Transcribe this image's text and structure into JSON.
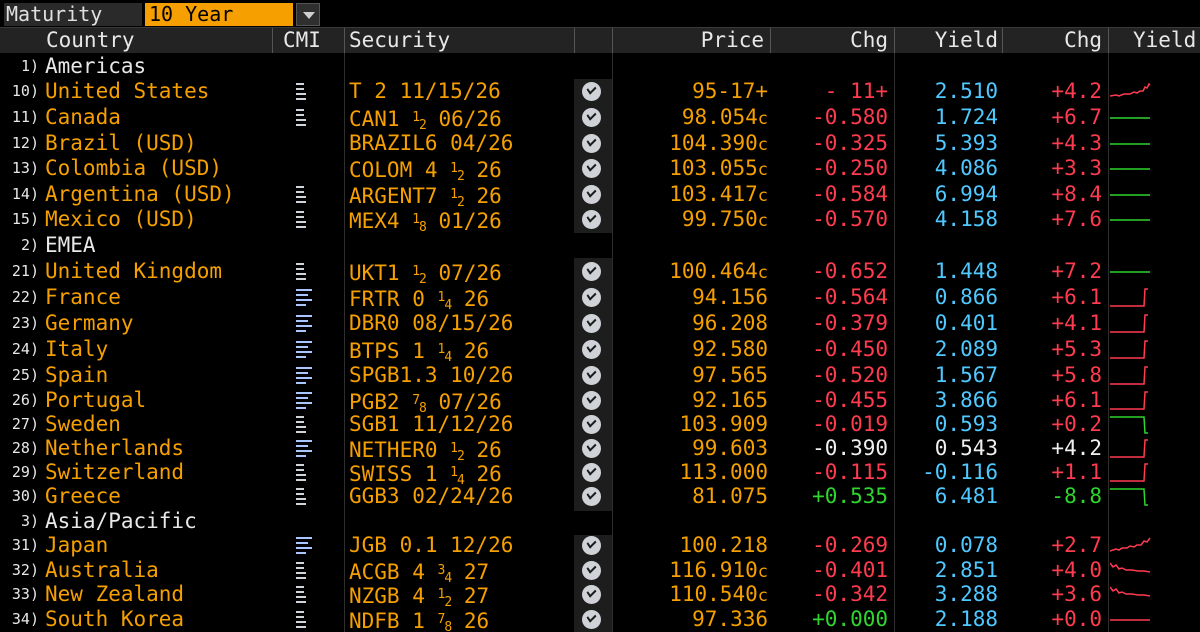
{
  "filter": {
    "label": "Maturity",
    "value": "10 Year"
  },
  "columns": {
    "country": "Country",
    "cmi": "CMI",
    "security": "Security",
    "price": "Price",
    "chg1": "Chg",
    "yield": "Yield",
    "chg2": "Chg",
    "yield_chart": "Yield"
  },
  "colors": {
    "orange": "#f5a000",
    "red": "#ff3b4f",
    "green": "#2ed62e",
    "cyan": "#4fc9ff",
    "white": "#f0f0f0"
  },
  "rows": [
    {
      "type": "region",
      "num": "1)",
      "name": "Americas"
    },
    {
      "type": "bond",
      "num": "10)",
      "country": "United States",
      "cmi": "white",
      "sec": [
        [
          "T 2 11/15/26",
          ""
        ]
      ],
      "price": "95-17+",
      "pc": "",
      "chg1": "- 11+",
      "chg1c": "red",
      "yield": "2.510",
      "yc": "cyan",
      "chg2": "+4.2",
      "chg2c": "red",
      "spark": "us"
    },
    {
      "type": "bond",
      "num": "11)",
      "country": "Canada",
      "cmi": "white",
      "sec": [
        [
          "CAN1 ",
          ""
        ],
        [
          "1",
          "sup"
        ],
        [
          "2",
          "sub"
        ],
        [
          " 06/26",
          ""
        ]
      ],
      "price": "98.054",
      "pc": "c",
      "chg1": "-0.580",
      "chg1c": "red",
      "yield": "1.724",
      "yc": "cyan",
      "chg2": "+6.7",
      "chg2c": "red",
      "spark": "flat"
    },
    {
      "type": "bond",
      "num": "12)",
      "country": "Brazil (USD)",
      "cmi": "",
      "sec": [
        [
          "BRAZIL6 04/26",
          ""
        ]
      ],
      "price": "104.390",
      "pc": "c",
      "chg1": "-0.325",
      "chg1c": "red",
      "yield": "5.393",
      "yc": "cyan",
      "chg2": "+4.3",
      "chg2c": "red",
      "spark": "flat"
    },
    {
      "type": "bond",
      "num": "13)",
      "country": "Colombia (USD)",
      "cmi": "",
      "sec": [
        [
          "COLOM 4 ",
          ""
        ],
        [
          "1",
          "sup"
        ],
        [
          "2",
          "sub"
        ],
        [
          " 26",
          ""
        ]
      ],
      "price": "103.055",
      "pc": "c",
      "chg1": "-0.250",
      "chg1c": "red",
      "yield": "4.086",
      "yc": "cyan",
      "chg2": "+3.3",
      "chg2c": "red",
      "spark": "flat"
    },
    {
      "type": "bond",
      "num": "14)",
      "country": "Argentina (USD)",
      "cmi": "white",
      "sec": [
        [
          "ARGENT7 ",
          ""
        ],
        [
          "1",
          "sup"
        ],
        [
          "2",
          "sub"
        ],
        [
          " 26",
          ""
        ]
      ],
      "price": "103.417",
      "pc": "c",
      "chg1": "-0.584",
      "chg1c": "red",
      "yield": "6.994",
      "yc": "cyan",
      "chg2": "+8.4",
      "chg2c": "red",
      "spark": "flat"
    },
    {
      "type": "bond",
      "num": "15)",
      "country": "Mexico (USD)",
      "cmi": "white",
      "sec": [
        [
          "MEX4 ",
          ""
        ],
        [
          "1",
          "sup"
        ],
        [
          "8",
          "sub"
        ],
        [
          " 01/26",
          ""
        ]
      ],
      "price": "99.750",
      "pc": "c",
      "chg1": "-0.570",
      "chg1c": "red",
      "yield": "4.158",
      "yc": "cyan",
      "chg2": "+7.6",
      "chg2c": "red",
      "spark": "flat"
    },
    {
      "type": "region",
      "num": "2)",
      "name": "EMEA"
    },
    {
      "type": "bond",
      "num": "21)",
      "country": "United Kingdom",
      "cmi": "white",
      "sec": [
        [
          "UKT1 ",
          ""
        ],
        [
          "1",
          "sup"
        ],
        [
          "2",
          "sub"
        ],
        [
          " 07/26",
          ""
        ]
      ],
      "price": "100.464",
      "pc": "c",
      "chg1": "-0.652",
      "chg1c": "red",
      "yield": "1.448",
      "yc": "cyan",
      "chg2": "+7.2",
      "chg2c": "red",
      "spark": "flat"
    },
    {
      "type": "bond",
      "num": "22)",
      "country": "France",
      "cmi": "blue",
      "sec": [
        [
          "FRTR 0 ",
          ""
        ],
        [
          "1",
          "sup"
        ],
        [
          "4",
          "sub"
        ],
        [
          " 26",
          ""
        ]
      ],
      "price": "94.156",
      "pc": "",
      "chg1": "-0.564",
      "chg1c": "red",
      "yield": "0.866",
      "yc": "cyan",
      "chg2": "+6.1",
      "chg2c": "red",
      "spark": "stepred"
    },
    {
      "type": "bond",
      "num": "23)",
      "country": "Germany",
      "cmi": "blue",
      "sec": [
        [
          "DBR0 08/15/26",
          ""
        ]
      ],
      "price": "96.208",
      "pc": "",
      "chg1": "-0.379",
      "chg1c": "red",
      "yield": "0.401",
      "yc": "cyan",
      "chg2": "+4.1",
      "chg2c": "red",
      "spark": "stepred"
    },
    {
      "type": "bond",
      "num": "24)",
      "country": "Italy",
      "cmi": "blue",
      "sec": [
        [
          "BTPS 1 ",
          ""
        ],
        [
          "1",
          "sup"
        ],
        [
          "4",
          "sub"
        ],
        [
          " 26",
          ""
        ]
      ],
      "price": "92.580",
      "pc": "",
      "chg1": "-0.450",
      "chg1c": "red",
      "yield": "2.089",
      "yc": "cyan",
      "chg2": "+5.3",
      "chg2c": "red",
      "spark": "stepred"
    },
    {
      "type": "bond",
      "num": "25)",
      "country": "Spain",
      "cmi": "blue",
      "sec": [
        [
          "SPGB1.3 10/26",
          ""
        ]
      ],
      "price": "97.565",
      "pc": "",
      "chg1": "-0.520",
      "chg1c": "red",
      "yield": "1.567",
      "yc": "cyan",
      "chg2": "+5.8",
      "chg2c": "red",
      "spark": "stepred"
    },
    {
      "type": "bond",
      "num": "26)",
      "country": "Portugal",
      "cmi": "blue",
      "sec": [
        [
          "PGB2 ",
          ""
        ],
        [
          "7",
          "sup"
        ],
        [
          "8",
          "sub"
        ],
        [
          " 07/26",
          ""
        ]
      ],
      "price": "92.165",
      "pc": "",
      "chg1": "-0.455",
      "chg1c": "red",
      "yield": "3.866",
      "yc": "cyan",
      "chg2": "+6.1",
      "chg2c": "red",
      "spark": "stepred"
    },
    {
      "type": "bond",
      "num": "27)",
      "country": "Sweden",
      "cmi": "white",
      "sec": [
        [
          "SGB1 11/12/26",
          ""
        ]
      ],
      "price": "103.909",
      "pc": "",
      "chg1": "-0.019",
      "chg1c": "red",
      "yield": "0.593",
      "yc": "cyan",
      "chg2": "+0.2",
      "chg2c": "red",
      "spark": "stepgreen"
    },
    {
      "type": "bond",
      "num": "28)",
      "country": "Netherlands",
      "cmi": "blue",
      "sec": [
        [
          "NETHER0 ",
          ""
        ],
        [
          "1",
          "sup"
        ],
        [
          "2",
          "sub"
        ],
        [
          " 26",
          ""
        ]
      ],
      "price": "99.603",
      "pc": "",
      "chg1": "-0.390",
      "chg1c": "white",
      "yield": "0.543",
      "yc": "white",
      "chg2": "+4.2",
      "chg2c": "white",
      "spark": "stepred"
    },
    {
      "type": "bond",
      "num": "29)",
      "country": "Switzerland",
      "cmi": "white",
      "sec": [
        [
          "SWISS 1 ",
          ""
        ],
        [
          "1",
          "sup"
        ],
        [
          "4",
          "sub"
        ],
        [
          " 26",
          ""
        ]
      ],
      "price": "113.000",
      "pc": "",
      "chg1": "-0.115",
      "chg1c": "red",
      "yield": "-0.116",
      "yc": "cyan",
      "chg2": "+1.1",
      "chg2c": "red",
      "spark": "stepred"
    },
    {
      "type": "bond",
      "num": "30)",
      "country": "Greece",
      "cmi": "white",
      "sec": [
        [
          "GGB3 02/24/26",
          ""
        ]
      ],
      "price": "81.075",
      "pc": "",
      "chg1": "+0.535",
      "chg1c": "green",
      "yield": "6.481",
      "yc": "cyan",
      "chg2": "-8.8",
      "chg2c": "green",
      "spark": "stepgreen"
    },
    {
      "type": "region",
      "num": "3)",
      "name": "Asia/Pacific"
    },
    {
      "type": "bond",
      "num": "31)",
      "country": "Japan",
      "cmi": "blue",
      "sec": [
        [
          "JGB 0.1 12/26",
          ""
        ]
      ],
      "price": "100.218",
      "pc": "",
      "chg1": "-0.269",
      "chg1c": "red",
      "yield": "0.078",
      "yc": "cyan",
      "chg2": "+2.7",
      "chg2c": "red",
      "spark": "up"
    },
    {
      "type": "bond",
      "num": "32)",
      "country": "Australia",
      "cmi": "white",
      "sec": [
        [
          "ACGB 4 ",
          ""
        ],
        [
          "3",
          "sup"
        ],
        [
          "4",
          "sub"
        ],
        [
          " 27",
          ""
        ]
      ],
      "price": "116.910",
      "pc": "c",
      "chg1": "-0.401",
      "chg1c": "red",
      "yield": "2.851",
      "yc": "cyan",
      "chg2": "+4.0",
      "chg2c": "red",
      "spark": "down"
    },
    {
      "type": "bond",
      "num": "33)",
      "country": "New Zealand",
      "cmi": "white",
      "sec": [
        [
          "NZGB 4 ",
          ""
        ],
        [
          "1",
          "sup"
        ],
        [
          "2",
          "sub"
        ],
        [
          " 27",
          ""
        ]
      ],
      "price": "110.540",
      "pc": "c",
      "chg1": "-0.342",
      "chg1c": "red",
      "yield": "3.288",
      "yc": "cyan",
      "chg2": "+3.6",
      "chg2c": "red",
      "spark": "down"
    },
    {
      "type": "bond",
      "num": "34)",
      "country": "South Korea",
      "cmi": "white",
      "sec": [
        [
          "NDFB 1 ",
          ""
        ],
        [
          "7",
          "sup"
        ],
        [
          "8",
          "sub"
        ],
        [
          " 26",
          ""
        ]
      ],
      "price": "97.336",
      "pc": "",
      "chg1": "+0.000",
      "chg1c": "green",
      "yield": "2.188",
      "yc": "cyan",
      "chg2": "+0.0",
      "chg2c": "red",
      "spark": "flatred"
    }
  ]
}
